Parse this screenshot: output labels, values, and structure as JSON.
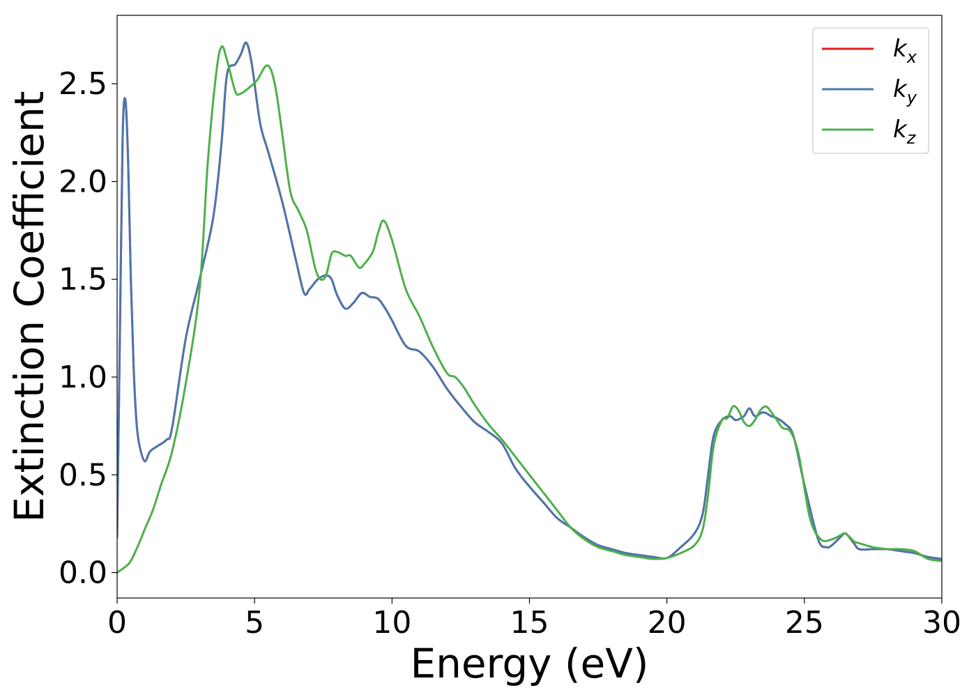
{
  "chart_data": {
    "type": "line",
    "xlabel": "Energy (eV)",
    "ylabel": "Extinction Coefficient",
    "xlim": [
      0,
      30
    ],
    "ylim": [
      -0.13,
      2.85
    ],
    "xticks": [
      "0",
      "5",
      "10",
      "15",
      "20",
      "25",
      "30"
    ],
    "yticks": [
      "0.0",
      "0.5",
      "1.0",
      "1.5",
      "2.0",
      "2.5"
    ],
    "grid": false,
    "legend_position": "top-right",
    "series": [
      {
        "name": "k_x",
        "label_base": "k",
        "label_sub": "x",
        "color": "#e41a1c",
        "x": [
          0,
          0.1,
          0.2,
          0.3,
          0.4,
          0.5,
          0.6,
          0.7,
          0.8,
          1.0,
          1.2,
          1.5,
          1.8,
          2.0,
          2.5,
          3.0,
          3.5,
          3.8,
          4.0,
          4.3,
          4.5,
          4.7,
          4.9,
          5.2,
          5.5,
          6.0,
          6.5,
          6.8,
          7.0,
          7.3,
          7.6,
          7.8,
          8.0,
          8.3,
          8.6,
          8.9,
          9.2,
          9.5,
          9.8,
          10.0,
          10.5,
          11.0,
          11.5,
          12.0,
          12.5,
          13.0,
          13.5,
          14.0,
          14.5,
          15.0,
          15.5,
          16.0,
          16.5,
          17.0,
          17.5,
          18.0,
          18.5,
          19.0,
          19.5,
          20.0,
          20.5,
          21.0,
          21.3,
          21.5,
          21.7,
          22.0,
          22.3,
          22.5,
          22.8,
          23.0,
          23.2,
          23.5,
          23.8,
          24.0,
          24.3,
          24.6,
          25.0,
          25.5,
          25.8,
          26.0,
          26.3,
          26.5,
          26.8,
          27.0,
          27.5,
          28.0,
          28.5,
          29.0,
          29.5,
          30.0
        ],
        "values": [
          0.18,
          1.2,
          2.22,
          2.42,
          2.1,
          1.5,
          1.05,
          0.78,
          0.66,
          0.57,
          0.62,
          0.65,
          0.68,
          0.74,
          1.2,
          1.5,
          1.82,
          2.2,
          2.55,
          2.6,
          2.65,
          2.71,
          2.6,
          2.3,
          2.15,
          1.9,
          1.6,
          1.43,
          1.45,
          1.5,
          1.52,
          1.5,
          1.42,
          1.35,
          1.38,
          1.43,
          1.41,
          1.4,
          1.34,
          1.29,
          1.16,
          1.13,
          1.05,
          0.94,
          0.85,
          0.77,
          0.72,
          0.66,
          0.53,
          0.44,
          0.36,
          0.28,
          0.23,
          0.18,
          0.14,
          0.12,
          0.1,
          0.09,
          0.08,
          0.075,
          0.13,
          0.2,
          0.3,
          0.5,
          0.7,
          0.78,
          0.8,
          0.78,
          0.8,
          0.84,
          0.8,
          0.82,
          0.8,
          0.79,
          0.76,
          0.7,
          0.45,
          0.17,
          0.13,
          0.14,
          0.18,
          0.2,
          0.15,
          0.12,
          0.12,
          0.12,
          0.11,
          0.1,
          0.08,
          0.07
        ]
      },
      {
        "name": "k_y",
        "label_base": "k",
        "label_sub": "y",
        "color": "#4a77ac",
        "x": [
          0,
          0.1,
          0.2,
          0.3,
          0.4,
          0.5,
          0.6,
          0.7,
          0.8,
          1.0,
          1.2,
          1.5,
          1.8,
          2.0,
          2.5,
          3.0,
          3.5,
          3.8,
          4.0,
          4.3,
          4.5,
          4.7,
          4.9,
          5.2,
          5.5,
          6.0,
          6.5,
          6.8,
          7.0,
          7.3,
          7.6,
          7.8,
          8.0,
          8.3,
          8.6,
          8.9,
          9.2,
          9.5,
          9.8,
          10.0,
          10.5,
          11.0,
          11.5,
          12.0,
          12.5,
          13.0,
          13.5,
          14.0,
          14.5,
          15.0,
          15.5,
          16.0,
          16.5,
          17.0,
          17.5,
          18.0,
          18.5,
          19.0,
          19.5,
          20.0,
          20.5,
          21.0,
          21.3,
          21.5,
          21.7,
          22.0,
          22.3,
          22.5,
          22.8,
          23.0,
          23.2,
          23.5,
          23.8,
          24.0,
          24.3,
          24.6,
          25.0,
          25.5,
          25.8,
          26.0,
          26.3,
          26.5,
          26.8,
          27.0,
          27.5,
          28.0,
          28.5,
          29.0,
          29.5,
          30.0
        ],
        "values": [
          0.18,
          1.2,
          2.22,
          2.42,
          2.1,
          1.5,
          1.05,
          0.78,
          0.66,
          0.57,
          0.62,
          0.65,
          0.68,
          0.74,
          1.2,
          1.5,
          1.82,
          2.2,
          2.55,
          2.6,
          2.65,
          2.71,
          2.6,
          2.3,
          2.15,
          1.9,
          1.6,
          1.43,
          1.45,
          1.5,
          1.52,
          1.5,
          1.42,
          1.35,
          1.38,
          1.43,
          1.41,
          1.4,
          1.34,
          1.29,
          1.16,
          1.13,
          1.05,
          0.94,
          0.85,
          0.77,
          0.72,
          0.66,
          0.53,
          0.44,
          0.36,
          0.28,
          0.23,
          0.18,
          0.14,
          0.12,
          0.1,
          0.09,
          0.08,
          0.075,
          0.13,
          0.2,
          0.3,
          0.5,
          0.7,
          0.78,
          0.8,
          0.78,
          0.8,
          0.84,
          0.8,
          0.82,
          0.8,
          0.79,
          0.76,
          0.7,
          0.45,
          0.17,
          0.13,
          0.14,
          0.18,
          0.2,
          0.15,
          0.12,
          0.12,
          0.12,
          0.11,
          0.1,
          0.08,
          0.07
        ]
      },
      {
        "name": "k_z",
        "label_base": "k",
        "label_sub": "z",
        "color": "#4daf4a",
        "x": [
          0,
          0.3,
          0.5,
          0.8,
          1.0,
          1.3,
          1.6,
          2.0,
          2.5,
          3.0,
          3.3,
          3.6,
          3.8,
          4.0,
          4.3,
          4.5,
          4.8,
          5.1,
          5.4,
          5.6,
          5.8,
          6.0,
          6.3,
          6.6,
          6.9,
          7.2,
          7.4,
          7.6,
          7.8,
          8.0,
          8.3,
          8.5,
          8.8,
          9.0,
          9.3,
          9.5,
          9.7,
          10.0,
          10.5,
          11.0,
          11.5,
          12.0,
          12.3,
          12.6,
          13.0,
          13.5,
          14.0,
          14.5,
          15.0,
          15.5,
          16.0,
          16.5,
          17.0,
          17.5,
          18.0,
          18.5,
          19.0,
          19.5,
          20.0,
          20.5,
          21.0,
          21.3,
          21.5,
          21.7,
          22.0,
          22.2,
          22.4,
          22.6,
          22.8,
          23.0,
          23.2,
          23.4,
          23.6,
          23.8,
          24.0,
          24.2,
          24.5,
          24.8,
          25.2,
          25.6,
          26.0,
          26.3,
          26.5,
          26.8,
          27.0,
          27.5,
          28.0,
          28.5,
          29.0,
          29.5,
          30.0
        ],
        "values": [
          0.0,
          0.03,
          0.06,
          0.15,
          0.22,
          0.32,
          0.45,
          0.62,
          0.97,
          1.45,
          2.1,
          2.55,
          2.69,
          2.62,
          2.46,
          2.45,
          2.48,
          2.52,
          2.59,
          2.57,
          2.45,
          2.25,
          1.95,
          1.85,
          1.75,
          1.56,
          1.5,
          1.52,
          1.63,
          1.64,
          1.62,
          1.62,
          1.56,
          1.58,
          1.64,
          1.74,
          1.8,
          1.7,
          1.45,
          1.31,
          1.15,
          1.02,
          1.0,
          0.95,
          0.86,
          0.76,
          0.68,
          0.59,
          0.5,
          0.41,
          0.32,
          0.23,
          0.17,
          0.13,
          0.11,
          0.09,
          0.08,
          0.07,
          0.075,
          0.1,
          0.14,
          0.22,
          0.4,
          0.65,
          0.78,
          0.79,
          0.85,
          0.83,
          0.77,
          0.75,
          0.78,
          0.83,
          0.85,
          0.82,
          0.78,
          0.74,
          0.72,
          0.6,
          0.28,
          0.17,
          0.17,
          0.19,
          0.2,
          0.16,
          0.15,
          0.13,
          0.12,
          0.12,
          0.11,
          0.07,
          0.06
        ]
      }
    ]
  }
}
